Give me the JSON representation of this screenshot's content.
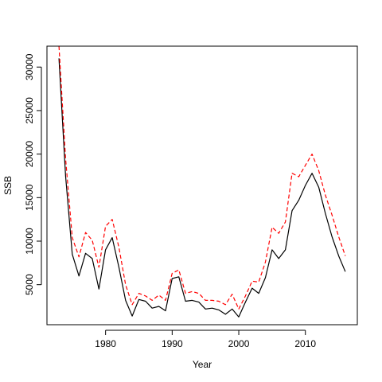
{
  "chart_data": {
    "type": "line",
    "xlabel": "Year",
    "ylabel": "SSB",
    "xlim": [
      1971.2,
      2017.8
    ],
    "ylim": [
      400,
      32400
    ],
    "xticks": [
      1980,
      1990,
      2000,
      2010
    ],
    "yticks": [
      5000,
      10000,
      15000,
      20000,
      25000,
      30000
    ],
    "grid": false,
    "x": [
      1973,
      1974,
      1975,
      1976,
      1977,
      1978,
      1979,
      1980,
      1981,
      1982,
      1983,
      1984,
      1985,
      1986,
      1987,
      1988,
      1989,
      1990,
      1991,
      1992,
      1993,
      1994,
      1995,
      1996,
      1997,
      1998,
      1999,
      2000,
      2001,
      2002,
      2003,
      2004,
      2005,
      2006,
      2007,
      2008,
      2009,
      2010,
      2011,
      2012,
      2013,
      2014,
      2015,
      2016
    ],
    "series": [
      {
        "style": "solid",
        "color": "#000000",
        "values": [
          31000,
          17500,
          8500,
          6000,
          8600,
          8000,
          4500,
          9000,
          10400,
          7000,
          3200,
          1400,
          3300,
          3100,
          2300,
          2500,
          2000,
          5700,
          5900,
          3100,
          3200,
          3000,
          2200,
          2300,
          2100,
          1600,
          2200,
          1300,
          3000,
          4600,
          4000,
          5800,
          9000,
          8000,
          9000,
          13500,
          14700,
          16400,
          17800,
          16200,
          13200,
          10500,
          8300,
          6500
        ]
      },
      {
        "style": "dashed",
        "color": "#ff0000",
        "values": [
          32400,
          19500,
          10400,
          8200,
          11000,
          10100,
          7000,
          11700,
          12500,
          9300,
          5000,
          2700,
          4000,
          3700,
          3200,
          3800,
          3200,
          6300,
          6700,
          4000,
          4200,
          4000,
          3200,
          3200,
          3100,
          2700,
          3900,
          2200,
          3700,
          5400,
          5300,
          7600,
          11600,
          10900,
          12200,
          17800,
          17400,
          18700,
          20000,
          18100,
          15300,
          13000,
          10500,
          8300
        ]
      }
    ]
  }
}
